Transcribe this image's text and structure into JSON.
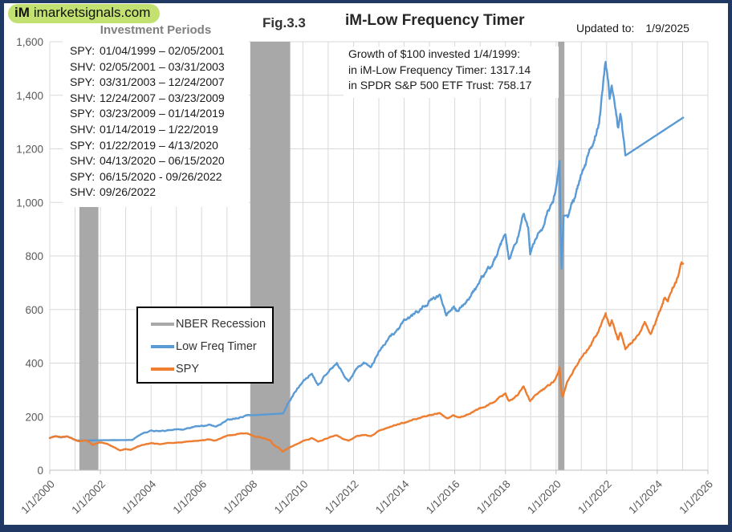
{
  "header": {
    "logo_mark": "iM",
    "logo_domain": "imarketsignals.com",
    "fig_label": "Fig.3.3",
    "title": "iM-Low Frequency Timer",
    "updated_label": "Updated to:",
    "updated_value": "1/9/2025"
  },
  "investment_periods": {
    "title": "Investment Periods",
    "rows": [
      {
        "ticker": "SPY:",
        "range": "01/04/1999 – 02/05/2001"
      },
      {
        "ticker": "SHV:",
        "range": "02/05/2001 – 03/31/2003"
      },
      {
        "ticker": "SPY:",
        "range": "03/31/2003 – 12/24/2007"
      },
      {
        "ticker": "SHV:",
        "range": "12/24/2007 – 03/23/2009"
      },
      {
        "ticker": "SPY:",
        "range": "03/23/2009 – 01/14/2019"
      },
      {
        "ticker": "SHV:",
        "range": "01/14/2019 – 1/22/2019"
      },
      {
        "ticker": "SPY:",
        "range": "01/22/2019 – 4/13/2020"
      },
      {
        "ticker": "SHV:",
        "range": "04/13/2020 –  06/15/2020"
      },
      {
        "ticker": "SPY:",
        "range": "06/15/2020 - 09/26/2022"
      },
      {
        "ticker": "SHV:",
        "range": "09/26/2022"
      }
    ]
  },
  "growth_note": {
    "lines": [
      "Growth of $100 invested 1/4/1999:",
      "in iM-Low Frequency Timer: 1317.14",
      "in SPDR S&P 500 ETF Trust: 758.17"
    ]
  },
  "colors": {
    "frame_border": "#1F3864",
    "logo_bg": "#C3E171",
    "grid": "#D9D9D9",
    "axis": "#BFBFBF",
    "tick_text": "#595959",
    "recession": "#A8A8A8",
    "timer_line": "#5B9BD5",
    "spy_line": "#ED7D31"
  },
  "chart_data": {
    "type": "line",
    "title": "iM-Low Frequency Timer",
    "x_axis": {
      "min_year": 2000,
      "max_year": 2026,
      "tick_step_years": 2,
      "grid_step_years": 1,
      "tick_labels": [
        "1/1/2000",
        "1/1/2002",
        "1/1/2004",
        "1/1/2006",
        "1/1/2008",
        "1/1/2010",
        "1/1/2012",
        "1/1/2014",
        "1/1/2016",
        "1/1/2018",
        "1/1/2020",
        "1/1/2022",
        "1/1/2024",
        "1/1/2026"
      ]
    },
    "y_axis": {
      "min": 0,
      "max": 1600,
      "step": 200,
      "tick_labels": [
        "0",
        "200",
        "400",
        "600",
        "800",
        "1,000",
        "1,200",
        "1,400",
        "1,600"
      ]
    },
    "legend": {
      "position": "middle-left",
      "entries": [
        {
          "label": "NBER Recession",
          "color": "#A8A8A8"
        },
        {
          "label": "Low Freq Timer",
          "color": "#5B9BD5"
        },
        {
          "label": "SPY",
          "color": "#ED7D31"
        }
      ]
    },
    "recession_bands": [
      [
        2001.17,
        2001.92
      ],
      [
        2007.92,
        2009.5
      ],
      [
        2020.08,
        2020.33
      ]
    ],
    "series": [
      {
        "name": "Low Freq Timer",
        "color": "#5B9BD5",
        "final_value": 1317.14,
        "flat_segments": [
          [
            2001.1,
            2003.25
          ],
          [
            2007.97,
            2009.22
          ],
          [
            2020.3,
            2020.45
          ],
          [
            2022.74,
            2025.03
          ]
        ],
        "points": [
          [
            2000.0,
            120
          ],
          [
            2000.2,
            127
          ],
          [
            2000.45,
            123
          ],
          [
            2000.7,
            126
          ],
          [
            2001.0,
            114
          ],
          [
            2001.1,
            111
          ],
          [
            2003.25,
            113
          ],
          [
            2003.6,
            136
          ],
          [
            2004.0,
            148
          ],
          [
            2004.4,
            145
          ],
          [
            2004.8,
            152
          ],
          [
            2005.3,
            154
          ],
          [
            2005.8,
            163
          ],
          [
            2006.3,
            169
          ],
          [
            2006.55,
            163
          ],
          [
            2007.0,
            188
          ],
          [
            2007.4,
            198
          ],
          [
            2007.78,
            207
          ],
          [
            2007.97,
            205
          ],
          [
            2009.22,
            212
          ],
          [
            2009.45,
            258
          ],
          [
            2009.75,
            300
          ],
          [
            2010.0,
            330
          ],
          [
            2010.35,
            362
          ],
          [
            2010.6,
            322
          ],
          [
            2011.0,
            372
          ],
          [
            2011.35,
            400
          ],
          [
            2011.6,
            360
          ],
          [
            2011.8,
            335
          ],
          [
            2012.1,
            378
          ],
          [
            2012.4,
            399
          ],
          [
            2012.7,
            390
          ],
          [
            2013.0,
            446
          ],
          [
            2013.5,
            502
          ],
          [
            2014.0,
            552
          ],
          [
            2014.5,
            590
          ],
          [
            2015.0,
            628
          ],
          [
            2015.4,
            652
          ],
          [
            2015.67,
            586
          ],
          [
            2015.95,
            622
          ],
          [
            2016.15,
            592
          ],
          [
            2016.5,
            640
          ],
          [
            2017.0,
            704
          ],
          [
            2017.5,
            770
          ],
          [
            2018.0,
            868
          ],
          [
            2018.13,
            786
          ],
          [
            2018.45,
            840
          ],
          [
            2018.72,
            960
          ],
          [
            2018.9,
            900
          ],
          [
            2018.98,
            800
          ],
          [
            2019.04,
            830
          ],
          [
            2019.3,
            880
          ],
          [
            2019.6,
            940
          ],
          [
            2019.9,
            1010
          ],
          [
            2020.05,
            1080
          ],
          [
            2020.14,
            1160
          ],
          [
            2020.18,
            900
          ],
          [
            2020.22,
            768
          ],
          [
            2020.26,
            880
          ],
          [
            2020.3,
            950
          ],
          [
            2020.45,
            952
          ],
          [
            2020.7,
            1010
          ],
          [
            2020.95,
            1080
          ],
          [
            2021.2,
            1140
          ],
          [
            2021.5,
            1230
          ],
          [
            2021.7,
            1320
          ],
          [
            2021.9,
            1480
          ],
          [
            2021.96,
            1525
          ],
          [
            2022.05,
            1450
          ],
          [
            2022.12,
            1390
          ],
          [
            2022.2,
            1440
          ],
          [
            2022.3,
            1400
          ],
          [
            2022.45,
            1280
          ],
          [
            2022.55,
            1330
          ],
          [
            2022.65,
            1240
          ],
          [
            2022.74,
            1175
          ],
          [
            2025.03,
            1317.14
          ]
        ]
      },
      {
        "name": "SPY",
        "color": "#ED7D31",
        "final_value": 758.17,
        "flat_segments": [],
        "points": [
          [
            2000.0,
            120
          ],
          [
            2000.2,
            127
          ],
          [
            2000.45,
            123
          ],
          [
            2000.7,
            126
          ],
          [
            2001.0,
            114
          ],
          [
            2001.15,
            107
          ],
          [
            2001.45,
            111
          ],
          [
            2001.7,
            94
          ],
          [
            2001.95,
            105
          ],
          [
            2002.3,
            97
          ],
          [
            2002.55,
            86
          ],
          [
            2002.78,
            74
          ],
          [
            2003.0,
            80
          ],
          [
            2003.2,
            77
          ],
          [
            2003.6,
            92
          ],
          [
            2004.0,
            100
          ],
          [
            2004.4,
            97
          ],
          [
            2004.8,
            103
          ],
          [
            2005.3,
            104
          ],
          [
            2005.8,
            110
          ],
          [
            2006.3,
            114
          ],
          [
            2006.55,
            110
          ],
          [
            2007.0,
            127
          ],
          [
            2007.4,
            134
          ],
          [
            2007.78,
            140
          ],
          [
            2008.1,
            127
          ],
          [
            2008.45,
            122
          ],
          [
            2008.7,
            112
          ],
          [
            2008.85,
            95
          ],
          [
            2009.05,
            85
          ],
          [
            2009.2,
            70
          ],
          [
            2009.45,
            85
          ],
          [
            2009.75,
            99
          ],
          [
            2010.0,
            109
          ],
          [
            2010.35,
            119
          ],
          [
            2010.6,
            106
          ],
          [
            2011.0,
            122
          ],
          [
            2011.35,
            131
          ],
          [
            2011.6,
            118
          ],
          [
            2011.8,
            110
          ],
          [
            2012.1,
            124
          ],
          [
            2012.4,
            131
          ],
          [
            2012.7,
            128
          ],
          [
            2013.0,
            146
          ],
          [
            2013.5,
            165
          ],
          [
            2014.0,
            181
          ],
          [
            2014.5,
            194
          ],
          [
            2015.0,
            206
          ],
          [
            2015.4,
            214
          ],
          [
            2015.67,
            192
          ],
          [
            2015.95,
            204
          ],
          [
            2016.15,
            194
          ],
          [
            2016.5,
            210
          ],
          [
            2017.0,
            231
          ],
          [
            2017.5,
            253
          ],
          [
            2018.0,
            285
          ],
          [
            2018.13,
            258
          ],
          [
            2018.45,
            276
          ],
          [
            2018.72,
            315
          ],
          [
            2018.98,
            263
          ],
          [
            2019.3,
            290
          ],
          [
            2019.6,
            308
          ],
          [
            2019.9,
            331
          ],
          [
            2020.05,
            355
          ],
          [
            2020.14,
            380
          ],
          [
            2020.2,
            300
          ],
          [
            2020.25,
            265
          ],
          [
            2020.35,
            300
          ],
          [
            2020.45,
            330
          ],
          [
            2020.7,
            375
          ],
          [
            2020.95,
            415
          ],
          [
            2021.2,
            448
          ],
          [
            2021.5,
            490
          ],
          [
            2021.7,
            520
          ],
          [
            2021.9,
            560
          ],
          [
            2021.96,
            575
          ],
          [
            2022.05,
            550
          ],
          [
            2022.12,
            530
          ],
          [
            2022.2,
            550
          ],
          [
            2022.3,
            535
          ],
          [
            2022.45,
            495
          ],
          [
            2022.55,
            515
          ],
          [
            2022.65,
            480
          ],
          [
            2022.74,
            455
          ],
          [
            2022.9,
            470
          ],
          [
            2023.1,
            490
          ],
          [
            2023.35,
            525
          ],
          [
            2023.5,
            555
          ],
          [
            2023.6,
            540
          ],
          [
            2023.75,
            515
          ],
          [
            2023.9,
            545
          ],
          [
            2024.1,
            595
          ],
          [
            2024.3,
            650
          ],
          [
            2024.42,
            630
          ],
          [
            2024.6,
            675
          ],
          [
            2024.75,
            700
          ],
          [
            2024.85,
            730
          ],
          [
            2024.95,
            770
          ],
          [
            2025.03,
            758.17
          ]
        ]
      }
    ]
  }
}
